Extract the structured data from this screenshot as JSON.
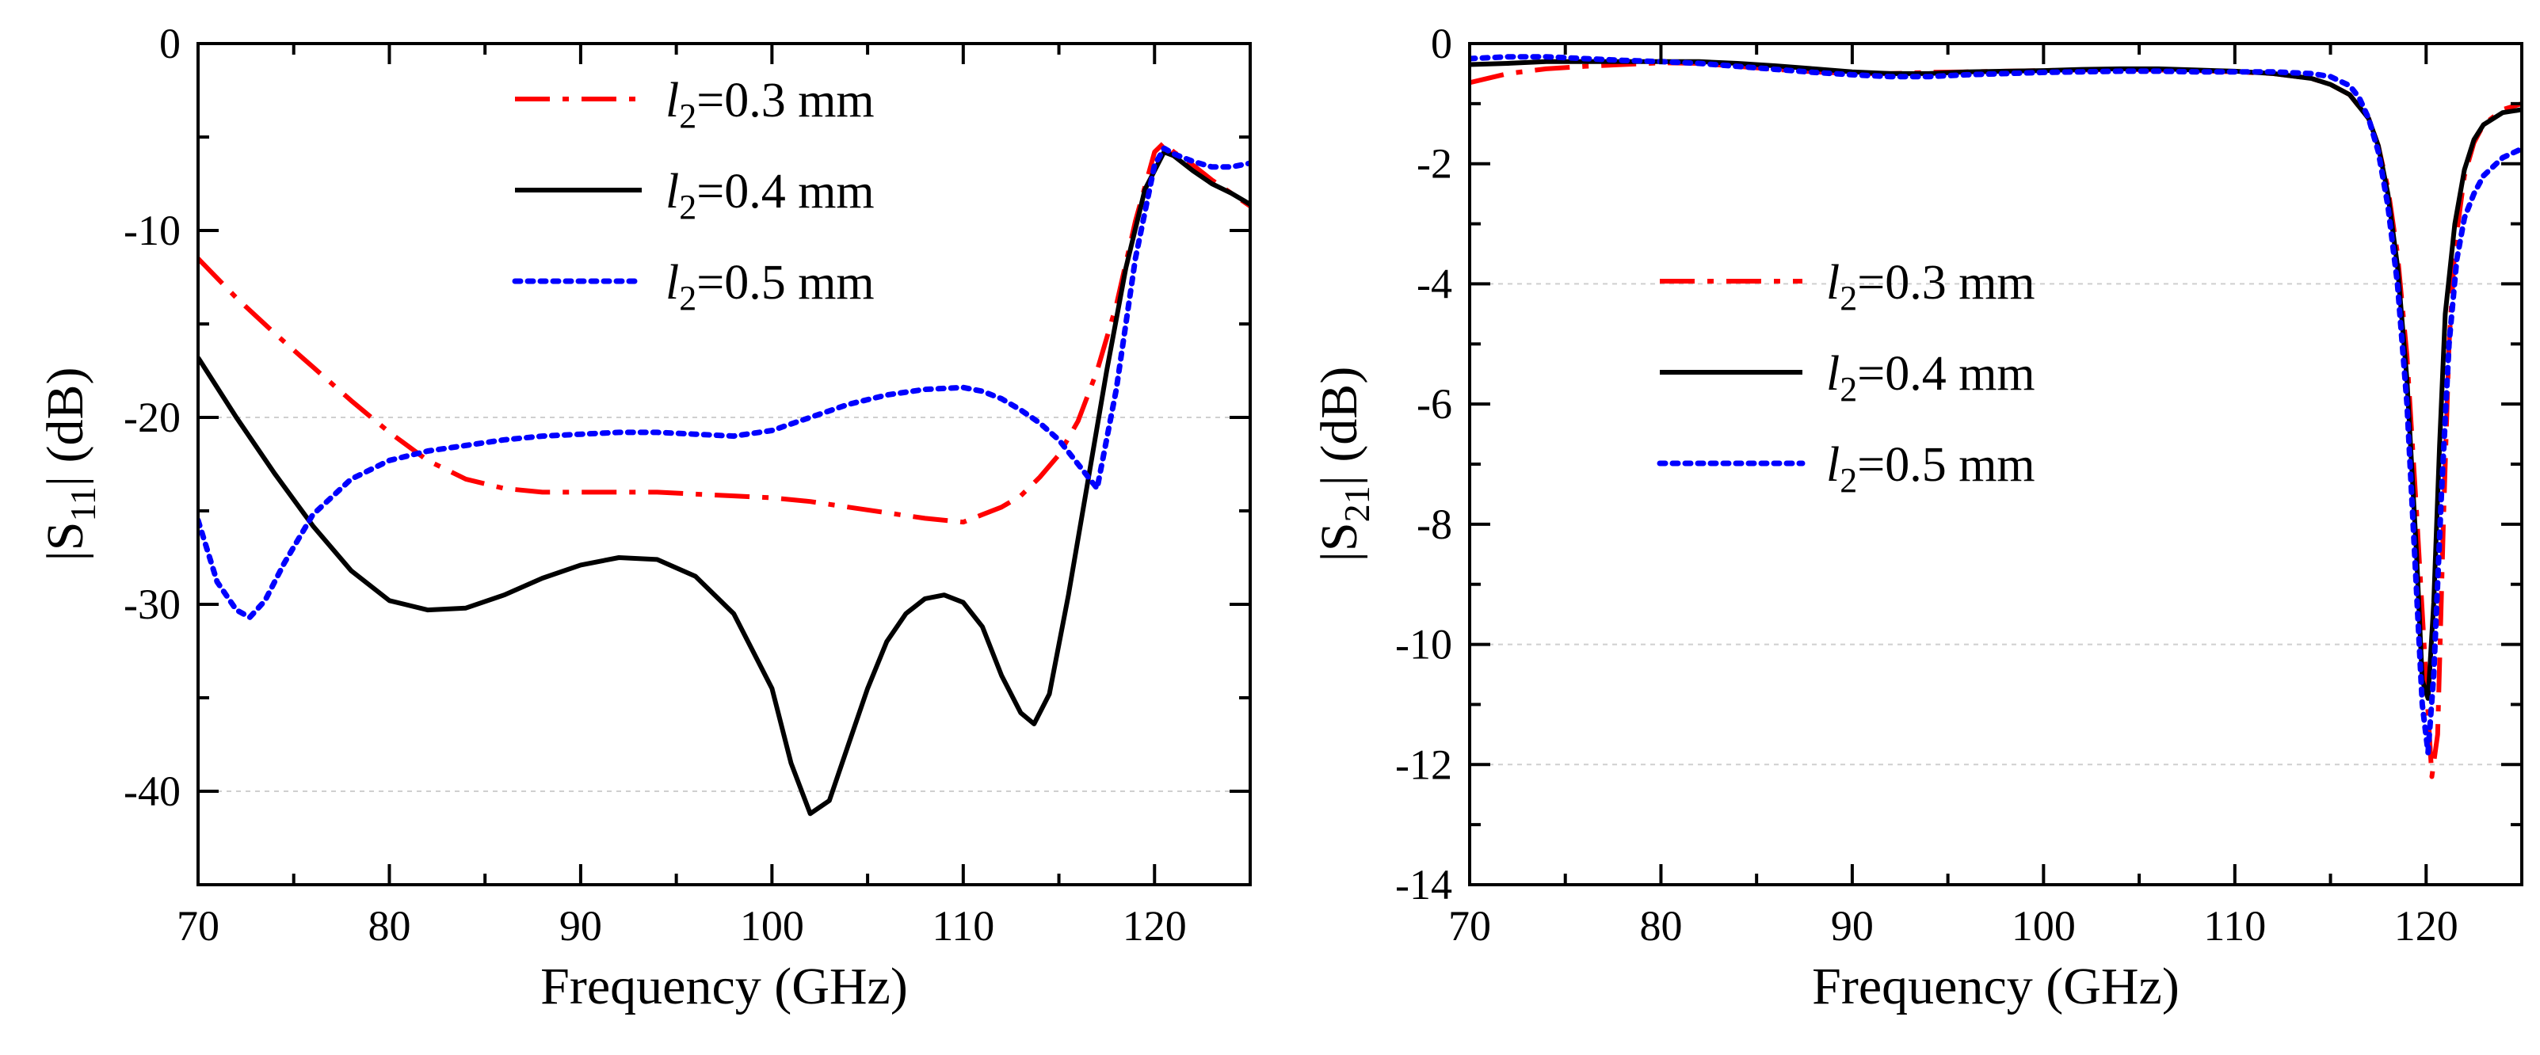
{
  "figure": {
    "description_label": "Two-panel S-parameter plot"
  },
  "chart_data": [
    {
      "type": "line",
      "id": "s11",
      "title": "",
      "xlabel": "Frequency (GHz)",
      "ylabel": "|S11| (dB)",
      "ylabel_parts": {
        "pre": "|S",
        "sub": "11",
        "post": "| (dB)"
      },
      "xlim": [
        70,
        125
      ],
      "ylim": [
        -45,
        0
      ],
      "xticks": [
        70,
        80,
        90,
        100,
        110,
        120
      ],
      "yticks": [
        0,
        -10,
        -20,
        -30,
        -40
      ],
      "minor_x": 5,
      "minor_y": 5,
      "gridlines_y": [
        -20,
        -40
      ],
      "legend_position": "top-center",
      "series": [
        {
          "name": "l2=0.3 mm",
          "legend": {
            "var": "l",
            "sub": "2",
            "rest": "=0.3 mm"
          },
          "color": "#ff0000",
          "style": "dashdot",
          "x": [
            70,
            72,
            74,
            76,
            78,
            80,
            82,
            84,
            86,
            88,
            90,
            92,
            94,
            96,
            98,
            100,
            102,
            104,
            106,
            108,
            110,
            111,
            112,
            113,
            114,
            115,
            116,
            117,
            118,
            119,
            120,
            120.5,
            121,
            122,
            123,
            124,
            125
          ],
          "y": [
            -11.5,
            -13.6,
            -15.5,
            -17.3,
            -19.1,
            -20.8,
            -22.3,
            -23.3,
            -23.8,
            -24.0,
            -24.0,
            -24.0,
            -24.0,
            -24.1,
            -24.2,
            -24.3,
            -24.5,
            -24.8,
            -25.1,
            -25.4,
            -25.6,
            -25.2,
            -24.8,
            -24.2,
            -23.2,
            -22.0,
            -20.2,
            -17.5,
            -14.0,
            -9.5,
            -5.8,
            -5.3,
            -5.8,
            -6.5,
            -7.3,
            -8.0,
            -8.7
          ]
        },
        {
          "name": "l2=0.4 mm",
          "legend": {
            "var": "l",
            "sub": "2",
            "rest": "=0.4 mm"
          },
          "color": "#000000",
          "style": "solid",
          "x": [
            70,
            72,
            74,
            76,
            78,
            80,
            82,
            84,
            86,
            88,
            90,
            92,
            94,
            96,
            98,
            100,
            101,
            102,
            103,
            104,
            105,
            106,
            107,
            108,
            109,
            110,
            111,
            112,
            113,
            113.7,
            114.5,
            115.5,
            116.5,
            117.5,
            118.5,
            119.5,
            120.5,
            121,
            122,
            123,
            124,
            125
          ],
          "y": [
            -16.8,
            -20.0,
            -23.0,
            -25.8,
            -28.2,
            -29.8,
            -30.3,
            -30.2,
            -29.5,
            -28.6,
            -27.9,
            -27.5,
            -27.6,
            -28.5,
            -30.5,
            -34.5,
            -38.5,
            -41.2,
            -40.5,
            -37.5,
            -34.5,
            -32.0,
            -30.5,
            -29.7,
            -29.5,
            -29.9,
            -31.2,
            -33.8,
            -35.8,
            -36.4,
            -34.8,
            -29.5,
            -23.5,
            -17.5,
            -12.0,
            -7.8,
            -5.8,
            -6.0,
            -6.8,
            -7.5,
            -8.0,
            -8.6
          ]
        },
        {
          "name": "l2=0.5 mm",
          "legend": {
            "var": "l",
            "sub": "2",
            "rest": "=0.5 mm"
          },
          "color": "#0000ff",
          "style": "dotted",
          "x": [
            70,
            71,
            72,
            72.7,
            73.5,
            74.5,
            76,
            78,
            80,
            82,
            84,
            86,
            88,
            90,
            92,
            94,
            96,
            98,
            100,
            102,
            104,
            106,
            108,
            110,
            111,
            112,
            113,
            114,
            115,
            116,
            117,
            118,
            119,
            120,
            120.5,
            121,
            122,
            123,
            124,
            125
          ],
          "y": [
            -25.5,
            -28.8,
            -30.3,
            -30.7,
            -29.8,
            -27.8,
            -25.2,
            -23.3,
            -22.3,
            -21.8,
            -21.5,
            -21.2,
            -21.0,
            -20.9,
            -20.8,
            -20.8,
            -20.9,
            -21.0,
            -20.7,
            -20.0,
            -19.3,
            -18.8,
            -18.5,
            -18.4,
            -18.6,
            -19.0,
            -19.6,
            -20.3,
            -21.2,
            -22.5,
            -23.8,
            -18.5,
            -11.5,
            -6.5,
            -5.6,
            -5.9,
            -6.3,
            -6.6,
            -6.6,
            -6.4
          ]
        }
      ]
    },
    {
      "type": "line",
      "id": "s21",
      "title": "",
      "xlabel": "Frequency (GHz)",
      "ylabel": "|S21| (dB)",
      "ylabel_parts": {
        "pre": "|S",
        "sub": "21",
        "post": "| (dB)"
      },
      "xlim": [
        70,
        125
      ],
      "ylim": [
        -14,
        0
      ],
      "xticks": [
        70,
        80,
        90,
        100,
        110,
        120
      ],
      "yticks": [
        0,
        -2,
        -4,
        -6,
        -8,
        -10,
        -12,
        -14
      ],
      "minor_x": 5,
      "minor_y": 1,
      "gridlines_y": [
        -4,
        -10,
        -12
      ],
      "legend_position": "center-left",
      "series": [
        {
          "name": "l2=0.3 mm",
          "legend": {
            "var": "l",
            "sub": "2",
            "rest": "=0.3 mm"
          },
          "color": "#ff0000",
          "style": "dashdot",
          "x": [
            70,
            72,
            74,
            76,
            78,
            80,
            82,
            84,
            86,
            88,
            90,
            92,
            94,
            96,
            98,
            100,
            102,
            104,
            106,
            108,
            110,
            112,
            114,
            115,
            116,
            117,
            117.5,
            118,
            118.5,
            119,
            119.5,
            120,
            120.3,
            120.6,
            120.9,
            121.2,
            121.5,
            122,
            122.5,
            123,
            124,
            125
          ],
          "y": [
            -0.65,
            -0.5,
            -0.42,
            -0.38,
            -0.35,
            -0.32,
            -0.33,
            -0.38,
            -0.43,
            -0.47,
            -0.5,
            -0.5,
            -0.48,
            -0.47,
            -0.46,
            -0.45,
            -0.44,
            -0.43,
            -0.44,
            -0.45,
            -0.47,
            -0.5,
            -0.58,
            -0.68,
            -0.85,
            -1.25,
            -1.7,
            -2.4,
            -3.5,
            -5.2,
            -7.8,
            -10.6,
            -12.2,
            -11.5,
            -8.0,
            -5.0,
            -3.4,
            -2.2,
            -1.65,
            -1.35,
            -1.1,
            -1.0
          ]
        },
        {
          "name": "l2=0.4 mm",
          "legend": {
            "var": "l",
            "sub": "2",
            "rest": "=0.4 mm"
          },
          "color": "#000000",
          "style": "solid",
          "x": [
            70,
            72,
            74,
            76,
            78,
            80,
            82,
            84,
            86,
            88,
            90,
            92,
            94,
            96,
            98,
            100,
            102,
            104,
            106,
            108,
            110,
            112,
            114,
            115,
            116,
            117,
            117.5,
            118,
            118.5,
            119,
            119.5,
            119.8,
            120.1,
            120.4,
            120.7,
            121,
            121.5,
            122,
            122.5,
            123,
            124,
            125
          ],
          "y": [
            -0.35,
            -0.33,
            -0.3,
            -0.3,
            -0.3,
            -0.3,
            -0.3,
            -0.33,
            -0.37,
            -0.42,
            -0.47,
            -0.5,
            -0.5,
            -0.47,
            -0.46,
            -0.45,
            -0.43,
            -0.42,
            -0.42,
            -0.44,
            -0.46,
            -0.5,
            -0.58,
            -0.68,
            -0.85,
            -1.25,
            -1.7,
            -2.5,
            -3.7,
            -5.6,
            -8.5,
            -10.6,
            -10.9,
            -9.3,
            -6.7,
            -4.5,
            -3.0,
            -2.1,
            -1.6,
            -1.35,
            -1.15,
            -1.1
          ]
        },
        {
          "name": "l2=0.5 mm",
          "legend": {
            "var": "l",
            "sub": "2",
            "rest": "=0.5 mm"
          },
          "color": "#0000ff",
          "style": "dotted",
          "x": [
            70,
            72,
            74,
            76,
            78,
            80,
            82,
            84,
            86,
            88,
            90,
            92,
            94,
            96,
            98,
            100,
            102,
            104,
            106,
            108,
            110,
            112,
            114,
            115,
            116,
            116.5,
            117,
            117.5,
            118,
            118.5,
            119,
            119.4,
            119.8,
            120.1,
            120.4,
            120.8,
            121.2,
            121.6,
            122,
            122.5,
            123,
            124,
            125
          ],
          "y": [
            -0.25,
            -0.22,
            -0.22,
            -0.25,
            -0.28,
            -0.3,
            -0.33,
            -0.38,
            -0.43,
            -0.48,
            -0.52,
            -0.55,
            -0.55,
            -0.52,
            -0.5,
            -0.48,
            -0.47,
            -0.46,
            -0.46,
            -0.47,
            -0.47,
            -0.47,
            -0.5,
            -0.55,
            -0.7,
            -0.9,
            -1.25,
            -1.8,
            -2.7,
            -4.0,
            -6.0,
            -8.5,
            -11.0,
            -11.8,
            -10.5,
            -7.5,
            -5.0,
            -3.6,
            -2.9,
            -2.5,
            -2.2,
            -1.9,
            -1.75
          ]
        }
      ]
    }
  ]
}
